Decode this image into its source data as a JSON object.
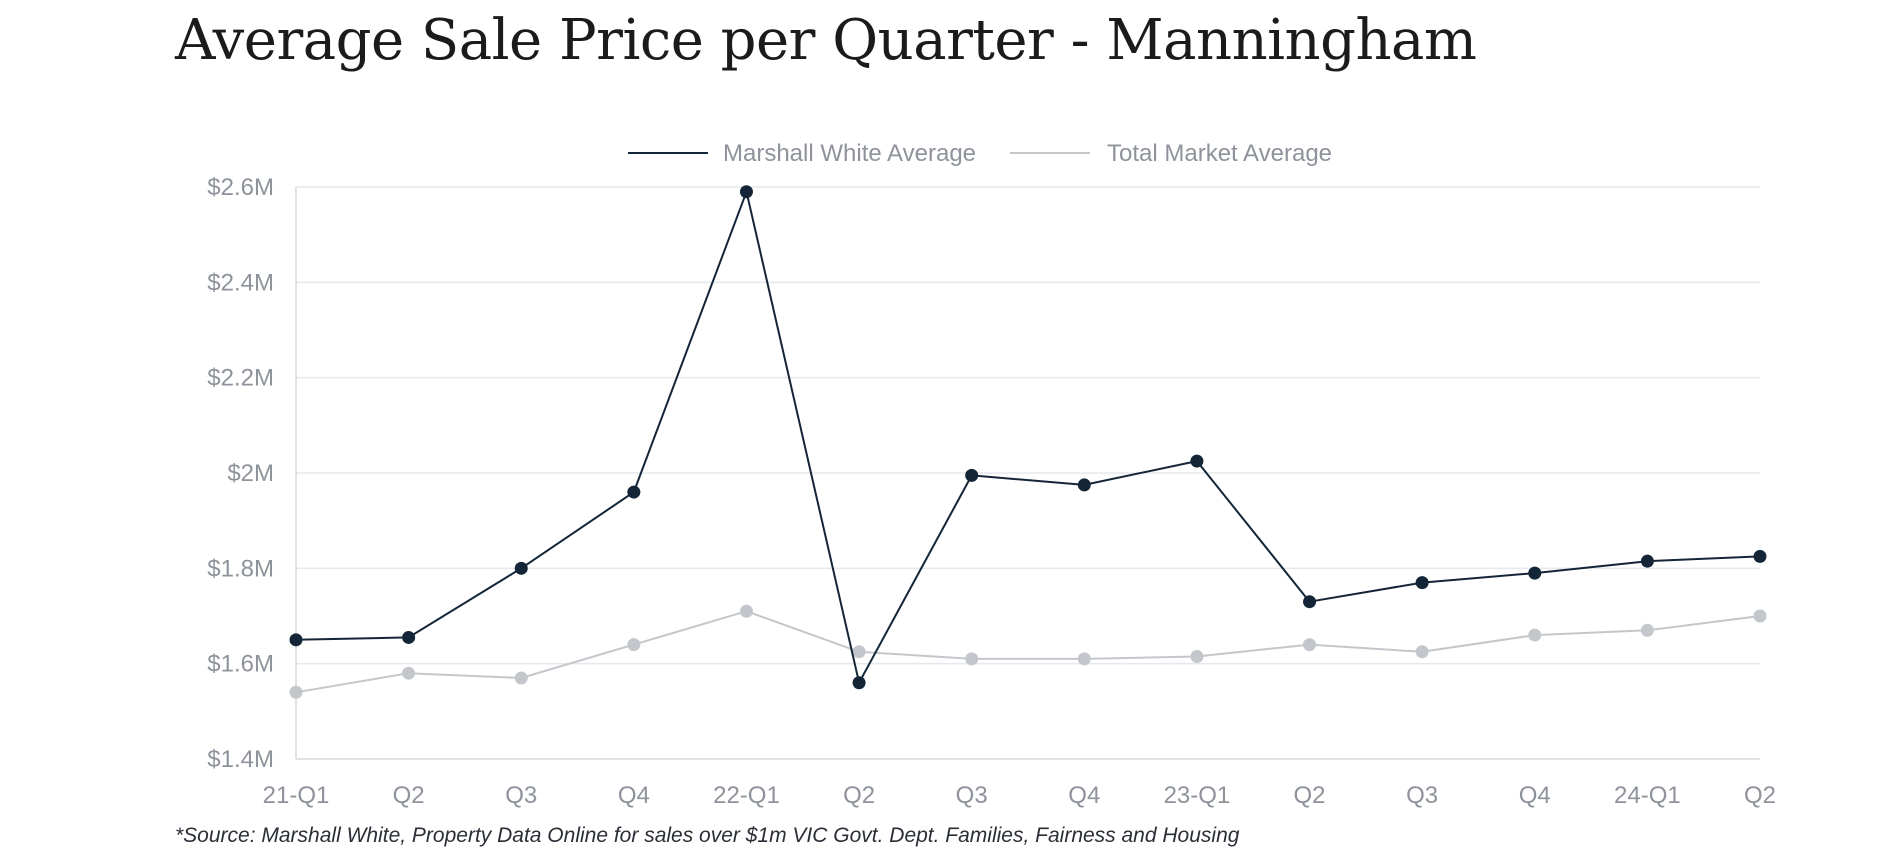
{
  "title": "Average Sale Price per Quarter - Manningham",
  "footnote": "*Source: Marshall White, Property Data Online for sales over $1m VIC Govt. Dept. Families, Fairness and Housing",
  "chart_data": {
    "type": "line",
    "title": "Average Sale Price per Quarter - Manningham",
    "xlabel": "",
    "ylabel": "",
    "categories": [
      "21-Q1",
      "Q2",
      "Q3",
      "Q4",
      "22-Q1",
      "Q2",
      "Q3",
      "Q4",
      "23-Q1",
      "Q2",
      "Q3",
      "Q4",
      "24-Q1",
      "Q2"
    ],
    "yticks": [
      1.4,
      1.6,
      1.8,
      2.0,
      2.2,
      2.4,
      2.6
    ],
    "ytick_labels": [
      "$1.4M",
      "$1.6M",
      "$1.8M",
      "$2M",
      "$2.2M",
      "$2.4M",
      "$2.6M"
    ],
    "ylim": [
      1.4,
      2.6
    ],
    "y_unit": "$M",
    "grid": true,
    "legend_position": "top-center",
    "series": [
      {
        "name": "Marshall White Average",
        "color": "#142538",
        "values": [
          1.65,
          1.655,
          1.8,
          1.96,
          2.59,
          1.56,
          1.995,
          1.975,
          2.025,
          1.73,
          1.77,
          1.79,
          1.815,
          1.825
        ]
      },
      {
        "name": "Total Market Average",
        "color": "#c3c7cc",
        "values": [
          1.54,
          1.58,
          1.57,
          1.64,
          1.71,
          1.625,
          1.61,
          1.61,
          1.615,
          1.64,
          1.625,
          1.66,
          1.67,
          1.7
        ]
      }
    ]
  }
}
